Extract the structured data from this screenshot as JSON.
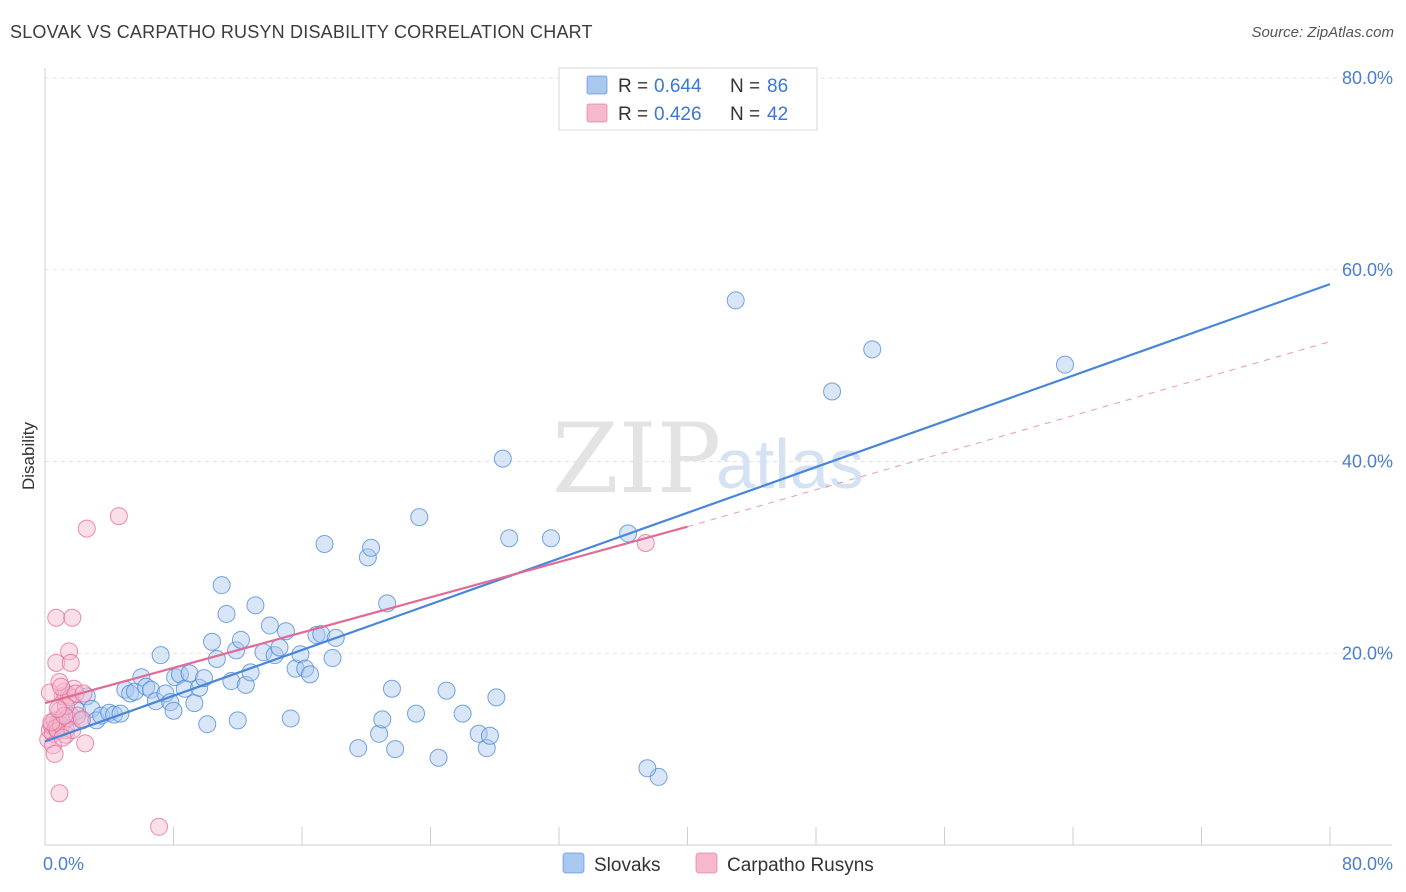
{
  "title": "SLOVAK VS CARPATHO RUSYN DISABILITY CORRELATION CHART",
  "source": "Source: ZipAtlas.com",
  "watermark": {
    "zip": "ZIP",
    "atlas": "atlas"
  },
  "legend_top": [
    {
      "r_label": "R =",
      "r_value": "0.644",
      "n_label": "N =",
      "n_value": "86",
      "color": "#a9c8f0"
    },
    {
      "r_label": "R =",
      "r_value": "0.426",
      "n_label": "N =",
      "n_value": "42",
      "color": "#f6b8cb"
    }
  ],
  "legend_bottom": [
    "Slovaks",
    "Carpatho Rusyns"
  ],
  "chart_data": {
    "type": "scatter",
    "xlabel": "",
    "ylabel": "Disability",
    "xlim": [
      0,
      80
    ],
    "ylim": [
      0,
      80
    ],
    "x_tick_labels": [
      "0.0%",
      "80.0%"
    ],
    "y_ticks": [
      20,
      40,
      60,
      80
    ],
    "y_tick_labels": [
      "20.0%",
      "40.0%",
      "60.0%",
      "80.0%"
    ],
    "grid": true,
    "series": [
      {
        "name": "Slovaks",
        "color": "#4a86d8",
        "fill": "#a9c8f0",
        "trend": {
          "x0": 0,
          "y0": 10.8,
          "x1": 80,
          "y1": 58.5
        },
        "points": [
          [
            0.6,
            12.2
          ],
          [
            0.8,
            12.8
          ],
          [
            1.0,
            13.2
          ],
          [
            1.3,
            12.0
          ],
          [
            1.6,
            13.5
          ],
          [
            2.0,
            14.0
          ],
          [
            2.3,
            13.0
          ],
          [
            2.6,
            15.5
          ],
          [
            2.9,
            14.2
          ],
          [
            3.2,
            13.0
          ],
          [
            3.5,
            13.5
          ],
          [
            4.0,
            13.8
          ],
          [
            4.3,
            13.6
          ],
          [
            4.7,
            13.7
          ],
          [
            5.0,
            16.2
          ],
          [
            5.3,
            15.8
          ],
          [
            5.6,
            16.0
          ],
          [
            6.0,
            17.5
          ],
          [
            6.3,
            16.5
          ],
          [
            6.6,
            16.2
          ],
          [
            6.9,
            15.0
          ],
          [
            7.2,
            19.8
          ],
          [
            7.5,
            15.8
          ],
          [
            7.8,
            14.9
          ],
          [
            8.1,
            17.5
          ],
          [
            8.4,
            17.8
          ],
          [
            8.7,
            16.3
          ],
          [
            9.0,
            17.9
          ],
          [
            9.3,
            14.8
          ],
          [
            9.6,
            16.4
          ],
          [
            9.9,
            17.4
          ],
          [
            10.1,
            12.6
          ],
          [
            10.4,
            21.2
          ],
          [
            10.7,
            19.4
          ],
          [
            11.0,
            27.1
          ],
          [
            11.3,
            24.1
          ],
          [
            11.6,
            17.1
          ],
          [
            11.9,
            20.3
          ],
          [
            12.2,
            21.4
          ],
          [
            12.5,
            16.7
          ],
          [
            12.8,
            18.0
          ],
          [
            13.1,
            25.0
          ],
          [
            13.6,
            20.1
          ],
          [
            14.0,
            22.9
          ],
          [
            14.3,
            19.8
          ],
          [
            14.6,
            20.6
          ],
          [
            15.0,
            22.3
          ],
          [
            15.3,
            13.2
          ],
          [
            15.6,
            18.4
          ],
          [
            15.9,
            19.9
          ],
          [
            16.2,
            18.4
          ],
          [
            16.5,
            17.8
          ],
          [
            16.9,
            21.9
          ],
          [
            17.2,
            22.0
          ],
          [
            17.4,
            31.4
          ],
          [
            17.9,
            19.5
          ],
          [
            18.1,
            21.6
          ],
          [
            19.5,
            10.1
          ],
          [
            20.1,
            30.0
          ],
          [
            20.3,
            31.0
          ],
          [
            20.8,
            11.6
          ],
          [
            21.0,
            13.1
          ],
          [
            21.3,
            25.2
          ],
          [
            21.6,
            16.3
          ],
          [
            21.8,
            10.0
          ],
          [
            23.1,
            13.7
          ],
          [
            23.3,
            34.2
          ],
          [
            24.5,
            9.1
          ],
          [
            25.0,
            16.1
          ],
          [
            26.0,
            13.7
          ],
          [
            27.0,
            11.6
          ],
          [
            27.5,
            10.1
          ],
          [
            27.7,
            11.4
          ],
          [
            28.1,
            15.4
          ],
          [
            28.5,
            40.3
          ],
          [
            28.9,
            32.0
          ],
          [
            31.5,
            32.0
          ],
          [
            36.3,
            32.5
          ],
          [
            38.2,
            7.1
          ],
          [
            43.0,
            56.8
          ],
          [
            49.0,
            47.3
          ],
          [
            51.5,
            51.7
          ],
          [
            63.5,
            50.1
          ],
          [
            37.5,
            8.0
          ],
          [
            12.0,
            13.0
          ],
          [
            8.0,
            14.0
          ]
        ]
      },
      {
        "name": "Carpatho Rusyns",
        "color": "#e26a97",
        "fill": "#f6b8cb",
        "trend": {
          "x0": 0,
          "y0": 14.8,
          "x1": 40,
          "y1": 33.2
        },
        "trend_dashed": {
          "x0": 40,
          "y0": 33.2,
          "x1": 80,
          "y1": 52.5
        },
        "points": [
          [
            0.2,
            11.0
          ],
          [
            0.3,
            12.0
          ],
          [
            0.4,
            12.5
          ],
          [
            0.5,
            11.6
          ],
          [
            0.6,
            13.0
          ],
          [
            0.7,
            12.2
          ],
          [
            0.8,
            11.9
          ],
          [
            0.9,
            14.0
          ],
          [
            1.0,
            12.5
          ],
          [
            1.1,
            15.5
          ],
          [
            1.2,
            16.0
          ],
          [
            1.3,
            11.5
          ],
          [
            1.4,
            13.2
          ],
          [
            1.5,
            15.6
          ],
          [
            1.6,
            15.4
          ],
          [
            1.7,
            12.0
          ],
          [
            1.8,
            16.3
          ],
          [
            1.9,
            15.8
          ],
          [
            2.0,
            13.5
          ],
          [
            0.3,
            15.9
          ],
          [
            0.5,
            10.4
          ],
          [
            0.6,
            9.5
          ],
          [
            0.7,
            19.0
          ],
          [
            0.7,
            23.7
          ],
          [
            0.9,
            17.0
          ],
          [
            1.0,
            16.5
          ],
          [
            1.3,
            14.5
          ],
          [
            1.5,
            20.2
          ],
          [
            1.6,
            19.0
          ],
          [
            1.7,
            23.7
          ],
          [
            2.3,
            13.1
          ],
          [
            2.4,
            15.8
          ],
          [
            2.5,
            10.6
          ],
          [
            2.6,
            33.0
          ],
          [
            0.9,
            5.4
          ],
          [
            4.6,
            34.3
          ],
          [
            7.1,
            1.9
          ],
          [
            37.4,
            31.5
          ],
          [
            0.4,
            12.8
          ],
          [
            1.2,
            13.5
          ],
          [
            0.8,
            14.2
          ],
          [
            1.1,
            11.2
          ]
        ]
      }
    ]
  }
}
